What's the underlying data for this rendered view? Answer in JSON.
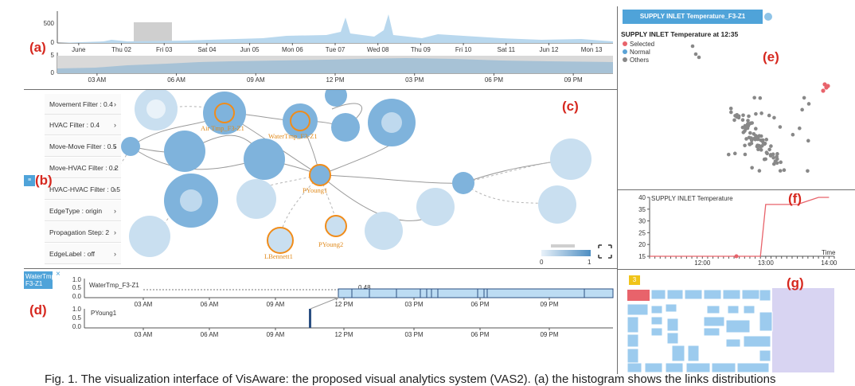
{
  "labels": {
    "a": "(a)",
    "b": "(b)",
    "c": "(c)",
    "d": "(d)",
    "e": "(e)",
    "f": "(f)",
    "g": "(g)"
  },
  "timeline_a": {
    "top_ticks": [
      "June",
      "Thu 02",
      "Fri 03",
      "Sat 04",
      "Jun 05",
      "Mon 06",
      "Tue 07",
      "Wed 08",
      "Thu 09",
      "Fri 10",
      "Sat 11",
      "Jun 12",
      "Mon 13"
    ],
    "top_y_ticks": [
      "500",
      "0"
    ],
    "bottom_ticks": [
      "03 AM",
      "06 AM",
      "09 AM",
      "12 PM",
      "03 PM",
      "06 PM",
      "09 PM"
    ],
    "bottom_y_ticks": [
      "5",
      "0"
    ]
  },
  "filters": [
    {
      "label": "Movement Filter : 0.4"
    },
    {
      "label": "HVAC Filter : 0.4"
    },
    {
      "label": "Move-Move Filter : 0.5"
    },
    {
      "label": "Move-HVAC Filter : 0.2"
    },
    {
      "label": "HVAC-HVAC Filter : 0.5"
    },
    {
      "label": "EdgeType : origin"
    },
    {
      "label": "Propagation Step: 2"
    },
    {
      "label": "EdgeLabel : off"
    }
  ],
  "graph": {
    "node_labels": [
      "Air Tmp_F3-Z1",
      "WaterTmp_F3-Z1",
      "PYoung1",
      "LBennett1",
      "PYoung2"
    ],
    "legend_min": "0",
    "legend_max": "1"
  },
  "panel_d": {
    "tab_label_1": "WaterTmp",
    "tab_label_2": "F3-Z1",
    "row1_name": "WaterTmp_F3-Z1",
    "row2_name": "PYoung1",
    "annotation": "0.48",
    "y_ticks": [
      "1.0",
      "0.5",
      "0.0"
    ],
    "x_ticks": [
      "03 AM",
      "06 AM",
      "09 AM",
      "12 PM",
      "03 PM",
      "06 PM",
      "09 PM"
    ]
  },
  "panel_e": {
    "tab_title": "SUPPLY INLET Temperature_F3-Z1",
    "title": "SUPPLY INLET Temperature at 12:35",
    "legend": [
      {
        "label": "Selected",
        "color": "#e8636b"
      },
      {
        "label": "Normal",
        "color": "#5ba3d6"
      },
      {
        "label": "Others",
        "color": "#888888"
      }
    ]
  },
  "chart_data": {
    "type": "line",
    "title": "SUPPLY INLET Temperature",
    "xlabel": "Time",
    "ylabel": "",
    "x_ticks": [
      "12:00",
      "13:00",
      "14:00"
    ],
    "y_ticks": [
      "40",
      "35",
      "30",
      "25",
      "20",
      "15"
    ],
    "ylim": [
      15,
      40
    ],
    "series": [
      {
        "x": [
          "11:10",
          "12:00",
          "12:30",
          "12:50",
          "12:55",
          "13:00",
          "13:30",
          "13:50",
          "14:00"
        ],
        "values": [
          15,
          15,
          15,
          15,
          15,
          37,
          37,
          40,
          40
        ]
      }
    ]
  },
  "panel_g": {
    "badge": "3"
  },
  "caption": "Fig. 1.  The visualization interface of VisAware: the proposed visual analytics system (VAS2). (a) the histogram shows the links distributions"
}
